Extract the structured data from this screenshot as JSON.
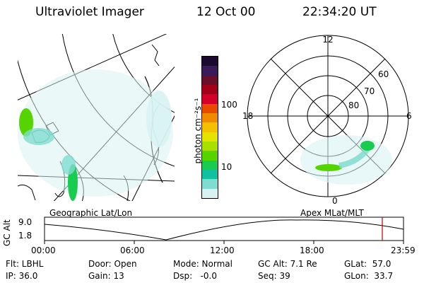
{
  "header": {
    "title": "Ultraviolet Imager",
    "date": "12 Oct 00",
    "time": "22:34:20 UT"
  },
  "geo_panel": {
    "label": "Geographic Lat/Lon"
  },
  "colorbar": {
    "unit_label": "photon cm⁻²s⁻¹",
    "ticks": [
      "100",
      "10"
    ],
    "colors": [
      "#1a0a2e",
      "#3b1a5a",
      "#6a0f2a",
      "#a3001a",
      "#d4002a",
      "#e84a00",
      "#f08a00",
      "#f5c000",
      "#e4e400",
      "#a8e000",
      "#55d400",
      "#18cc50",
      "#10c0a0",
      "#80dcd0",
      "#d8f2f2"
    ]
  },
  "polar_panel": {
    "label": "Apex MLat/MLT",
    "mlt_labels": [
      "12",
      "18",
      "6",
      "0"
    ],
    "lat_labels": [
      "60",
      "70",
      "80"
    ]
  },
  "timeline": {
    "axis_label": "GC Alt",
    "y_ticks": [
      "9.0",
      "1.8"
    ],
    "x_ticks": [
      "00:00",
      "06:00",
      "12:00",
      "18:00",
      "23:59"
    ],
    "marker_time": "22:34",
    "marker_color": "#c00000"
  },
  "status": {
    "flt": "Flt: LBHL",
    "ip": "IP: 36.0",
    "door": "Door: Open",
    "gain": "Gain: 13",
    "mode": "Mode: Normal",
    "dsp": "Dsp:   -0.0",
    "gc_alt": "GC Alt: 7.1 Re",
    "seq": "Seq: 39",
    "glat": "GLat:  57.0",
    "glon": "GLon:  33.7"
  }
}
